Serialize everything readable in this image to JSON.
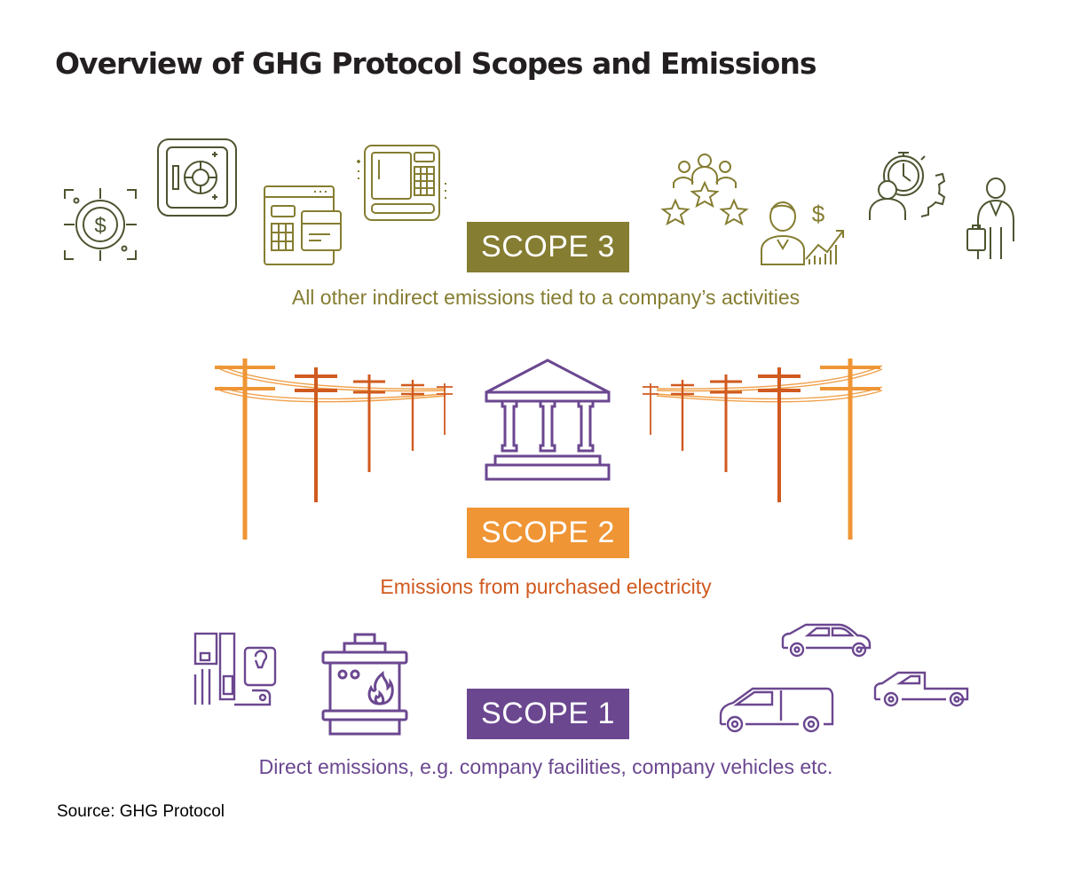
{
  "title": "Overview of GHG Protocol Scopes and Emissions",
  "colors": {
    "scope3": "#857d31",
    "scope3_icon_dark": "#4c5530",
    "scope2": "#ef9535",
    "scope2_text": "#d05a1f",
    "scope1": "#6b4790",
    "title": "#231f20"
  },
  "scopes": [
    {
      "label": "SCOPE 3",
      "description": "All other indirect emissions tied to a company’s activities",
      "icons": [
        "dollar-target-icon",
        "vault-safe-icon",
        "pos-terminal-card-icon",
        "atm-keypad-icon",
        "team-rating-stars-icon",
        "investor-growth-icon",
        "stopwatch-gears-icon",
        "business-traveler-icon"
      ]
    },
    {
      "label": "SCOPE 2",
      "description": "Emissions from purchased electricity",
      "icons": [
        "power-lines-left-icon",
        "power-plant-building-icon",
        "power-lines-right-icon"
      ],
      "icon_labels": {
        "currency": "$"
      }
    },
    {
      "label": "SCOPE 1",
      "description": "Direct emissions, e.g. company facilities, company vehicles etc.",
      "icons": [
        "industrial-equipment-icon",
        "furnace-icon",
        "suv-car-icon",
        "van-icon",
        "pickup-truck-icon"
      ]
    }
  ],
  "source": "Source: GHG Protocol"
}
